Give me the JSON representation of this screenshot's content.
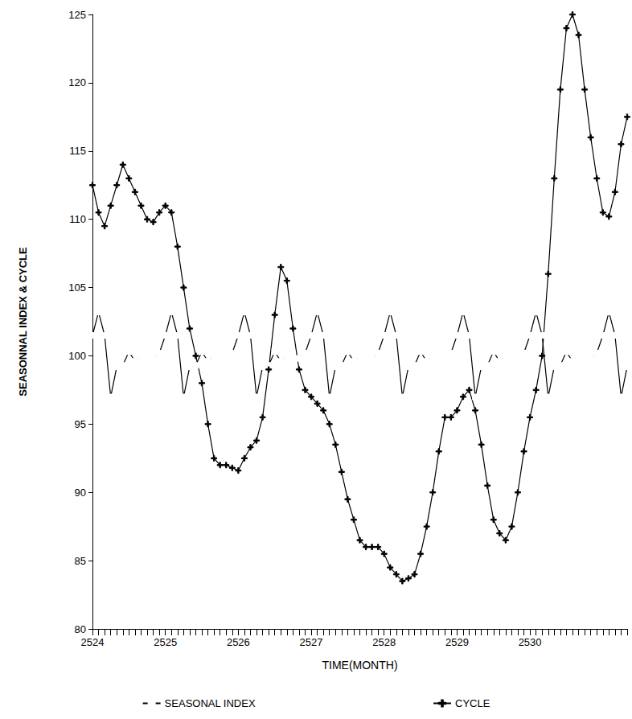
{
  "chart_data": {
    "type": "line",
    "xlabel": "TIME(MONTH)",
    "ylabel": "SEASONNAL INDEX & CYCLE",
    "categories": [
      "2524",
      null,
      null,
      null,
      null,
      null,
      null,
      null,
      null,
      null,
      null,
      null,
      "2525",
      null,
      null,
      null,
      null,
      null,
      null,
      null,
      null,
      null,
      null,
      null,
      "2526",
      null,
      null,
      null,
      null,
      null,
      null,
      null,
      null,
      null,
      null,
      null,
      "2527",
      null,
      null,
      null,
      null,
      null,
      null,
      null,
      null,
      null,
      null,
      null,
      "2528",
      null,
      null,
      null,
      null,
      null,
      null,
      null,
      null,
      null,
      null,
      null,
      "2529",
      null,
      null,
      null,
      null,
      null,
      null,
      null,
      null,
      null,
      null,
      null,
      "2530",
      null,
      null,
      null,
      null,
      null,
      null,
      null,
      null,
      null,
      null,
      null,
      null,
      null,
      null,
      null,
      null
    ],
    "series": [
      {
        "name": "SEASONAL INDEX",
        "color": "#000000",
        "marker": "square",
        "line_style": "solid",
        "values": [
          101.5,
          103.2,
          101.5,
          97.0,
          99.2,
          99.3,
          100.3,
          99.6,
          100.0,
          99.7,
          99.8,
          100.2,
          101.5,
          103.2,
          101.5,
          97.0,
          99.2,
          99.3,
          100.3,
          99.6,
          100.0,
          99.7,
          99.8,
          100.2,
          101.5,
          103.2,
          101.5,
          97.0,
          99.2,
          99.3,
          100.3,
          99.6,
          100.0,
          99.7,
          99.8,
          100.2,
          101.5,
          103.2,
          101.5,
          97.0,
          99.2,
          99.3,
          100.3,
          99.6,
          100.0,
          99.7,
          99.8,
          100.2,
          101.5,
          103.2,
          101.5,
          97.0,
          99.2,
          99.3,
          100.3,
          99.6,
          100.0,
          99.7,
          99.8,
          100.2,
          101.5,
          103.2,
          101.5,
          97.0,
          99.2,
          99.3,
          100.3,
          99.6,
          100.0,
          99.7,
          99.8,
          100.2,
          101.5,
          103.2,
          101.5,
          97.0,
          99.2,
          99.3,
          100.3,
          99.6,
          100.0,
          99.7,
          99.8,
          100.2,
          101.5,
          103.2,
          101.5,
          97.0,
          99.2
        ]
      },
      {
        "name": "CYCLE",
        "color": "#000000",
        "marker": "plus",
        "line_style": "solid",
        "values": [
          112.5,
          110.5,
          109.5,
          111,
          112.5,
          114,
          113,
          112,
          111,
          110,
          109.8,
          110.5,
          111,
          110.5,
          108,
          105,
          102,
          100,
          98,
          95,
          92.5,
          92,
          92,
          91.8,
          91.6,
          92.5,
          93.3,
          93.8,
          95.5,
          99,
          103,
          106.5,
          105.5,
          102,
          99,
          97.5,
          97,
          96.5,
          96,
          95,
          93.5,
          91.5,
          89.5,
          88,
          86.5,
          86,
          86,
          86,
          85.5,
          84.5,
          84,
          83.5,
          83.7,
          84,
          85.5,
          87.5,
          90,
          93,
          95.5,
          95.5,
          96,
          97,
          97.5,
          96,
          93.5,
          90.5,
          88,
          87,
          86.5,
          87.5,
          90,
          93,
          95.5,
          97.5,
          100,
          106,
          113,
          119.5,
          124,
          125,
          123.5,
          119.5,
          116,
          113,
          110.5,
          110.2,
          112,
          115.5,
          117.5
        ]
      }
    ],
    "ylim": [
      80,
      125
    ],
    "yticks": [
      80,
      85,
      90,
      95,
      100,
      105,
      110,
      115,
      120,
      125
    ],
    "grid": false,
    "legend": "bottom"
  }
}
